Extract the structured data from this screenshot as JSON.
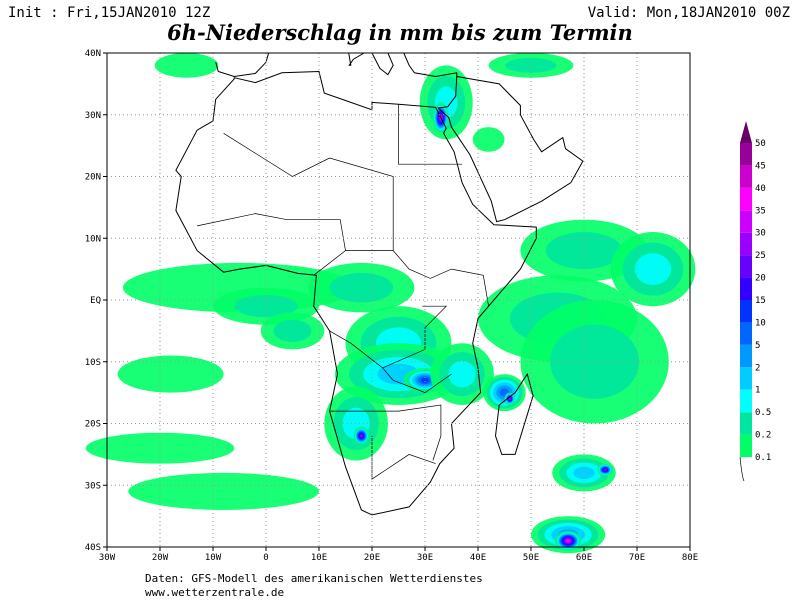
{
  "header": {
    "init": "Init : Fri,15JAN2010 12Z",
    "valid": "Valid: Mon,18JAN2010 00Z",
    "title": "6h-Niederschlag in mm bis zum Termin"
  },
  "map": {
    "lon_labels": [
      "30W",
      "20W",
      "10W",
      "0",
      "10E",
      "20E",
      "30E",
      "40E",
      "50E",
      "60E",
      "70E",
      "80E"
    ],
    "lat_labels": [
      "40N",
      "30N",
      "20N",
      "10N",
      "EQ",
      "10S",
      "20S",
      "30S",
      "40S"
    ]
  },
  "legend": {
    "labels": [
      "0.1",
      "0.2",
      "0.5",
      "1",
      "2",
      "5",
      "10",
      "15",
      "20",
      "25",
      "30",
      "35",
      "40",
      "45",
      "50"
    ],
    "colors": [
      "#00ff66",
      "#00e6a0",
      "#00ffff",
      "#00ccff",
      "#0099ff",
      "#0066ff",
      "#0033ff",
      "#3300ff",
      "#6600ff",
      "#9900ff",
      "#cc00ff",
      "#ff00ff",
      "#cc00cc",
      "#990099",
      "#660066"
    ]
  },
  "footer": {
    "source": "Daten: GFS-Modell des amerikanischen Wetterdienstes",
    "site": "www.wetterzentrale.de"
  }
}
